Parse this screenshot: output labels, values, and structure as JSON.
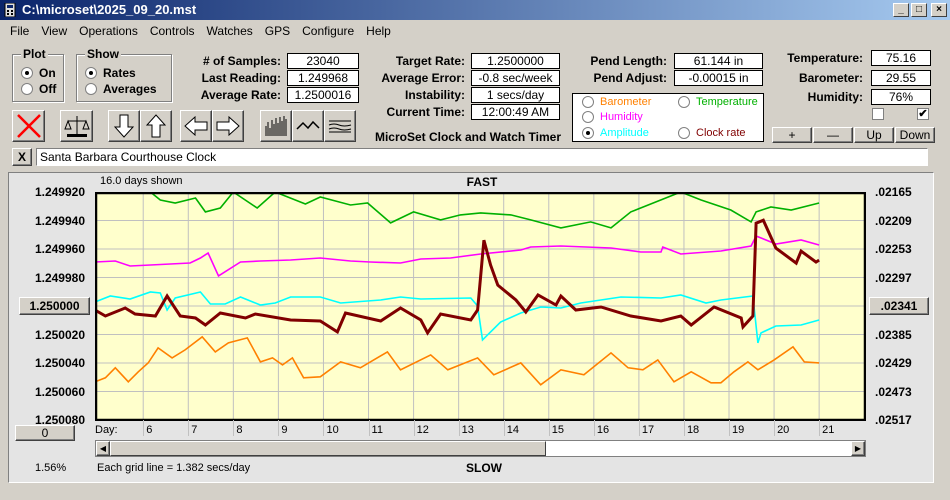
{
  "window": {
    "title": "C:\\microset\\2025_09_20.mst",
    "controls": [
      "_",
      "□",
      "×"
    ]
  },
  "menu": [
    "File",
    "View",
    "Operations",
    "Controls",
    "Watches",
    "GPS",
    "Configure",
    "Help"
  ],
  "plot_group": {
    "label": "Plot",
    "options": [
      {
        "label": "On",
        "selected": true
      },
      {
        "label": "Off",
        "selected": false
      }
    ]
  },
  "show_group": {
    "label": "Show",
    "options": [
      {
        "label": "Rates",
        "selected": true
      },
      {
        "label": "Averages",
        "selected": false
      }
    ]
  },
  "stats": [
    {
      "label": "# of Samples:",
      "value": "23040"
    },
    {
      "label": "Last Reading:",
      "value": "1.249968"
    },
    {
      "label": "Average Rate:",
      "value": "1.2500016"
    }
  ],
  "rates": [
    {
      "label": "Target Rate:",
      "value": "1.2500000"
    },
    {
      "label": "Average Error:",
      "value": "-0.8 sec/week"
    },
    {
      "label": "Instability:",
      "value": "1 secs/day"
    },
    {
      "label": "Current Time:",
      "value": "12:00:49 AM"
    }
  ],
  "app_name": "MicroSet Clock and Watch Timer",
  "pend": [
    {
      "label": "Pend Length:",
      "value": "61.144 in"
    },
    {
      "label": "Pend Adjust:",
      "value": "-0.00015 in"
    }
  ],
  "legend": [
    {
      "label": "Barometer",
      "color": "#ff8000",
      "selected": false
    },
    {
      "label": "Temperature",
      "color": "#00b000",
      "selected": false
    },
    {
      "label": "Humidity",
      "color": "#ff00ff",
      "selected": false
    },
    {
      "label": "Amplitude",
      "color": "#00ffff",
      "selected": true
    },
    {
      "label": "Clock rate",
      "color": "#800000",
      "selected": false
    }
  ],
  "env": [
    {
      "label": "Temperature:",
      "value": "75.16"
    },
    {
      "label": "Barometer:",
      "value": "29.55"
    },
    {
      "label": "Humidity:",
      "value": "76%"
    }
  ],
  "checkboxes": [
    {
      "checked": false
    },
    {
      "checked": true
    }
  ],
  "scale_buttons": [
    "+",
    "—",
    "Up",
    "Down"
  ],
  "toolbar_icons": [
    "delete-x-icon",
    "balance-scale-icon",
    "arrow-down-icon",
    "arrow-up-icon",
    "arrow-left-icon",
    "arrow-right-icon",
    "bar-graph-icon",
    "line-graph-icon",
    "smooth-lines-icon"
  ],
  "clock_name_clear": "X",
  "clock_name": "Santa Barbara Courthouse Clock",
  "chart_info": {
    "days_shown": "16.0 days shown",
    "top_label": "FAST",
    "bottom_label": "SLOW",
    "grid_note": "Each grid line = 1.382 secs/day",
    "percent": "1.56%",
    "offset_button": "0",
    "day_label": "Day:",
    "center_left": "1.250000",
    "center_right": ".02341"
  },
  "chart_data": {
    "type": "line",
    "xlabel": "Day",
    "xlim": [
      4.93,
      22.04
    ],
    "x_ticks": [
      6,
      7,
      8,
      9,
      10,
      11,
      12,
      13,
      14,
      15,
      16,
      17,
      18,
      19,
      20,
      21
    ],
    "y_units": "rate offset from 1.250000 in units of 1e-6",
    "ylim": [
      -80,
      80
    ],
    "left_ticks": [
      "1.249920",
      "1.249940",
      "1.249960",
      "1.249980",
      "1.250000",
      "1.250020",
      "1.250040",
      "1.250060",
      "1.250080"
    ],
    "right_ticks": [
      ".02165",
      ".02209",
      ".02253",
      ".02297",
      ".02341",
      ".02385",
      ".02429",
      ".02473",
      ".02517"
    ],
    "grid": true,
    "series": [
      {
        "name": "Temperature",
        "color": "#00b000",
        "points": [
          [
            4.93,
            -80
          ],
          [
            6.16,
            -80
          ],
          [
            6.38,
            -74.4
          ],
          [
            6.71,
            -72.3
          ],
          [
            7.16,
            -75.8
          ],
          [
            7.38,
            -66
          ],
          [
            7.71,
            -68.8
          ],
          [
            8,
            -80
          ],
          [
            8.53,
            -68.8
          ],
          [
            8.93,
            -80
          ],
          [
            9.6,
            -71.6
          ],
          [
            9.93,
            -76.5
          ],
          [
            10.6,
            -70.9
          ],
          [
            10.98,
            -72.3
          ],
          [
            11.49,
            -58.3
          ],
          [
            12,
            -66
          ],
          [
            12.6,
            -60.4
          ],
          [
            13.04,
            -63.9
          ],
          [
            13.49,
            -65.3
          ],
          [
            14.16,
            -63.9
          ],
          [
            14.6,
            -60.4
          ],
          [
            15.27,
            -54.8
          ],
          [
            15.93,
            -59
          ],
          [
            16.38,
            -54.8
          ],
          [
            16.82,
            -66
          ],
          [
            17.93,
            -80
          ],
          [
            18.38,
            -74.4
          ],
          [
            19.04,
            -67.4
          ],
          [
            19.49,
            -59
          ],
          [
            19.6,
            -66
          ],
          [
            19.93,
            -69.5
          ],
          [
            20.38,
            -67.4
          ],
          [
            21,
            -72.3
          ]
        ]
      },
      {
        "name": "Humidity",
        "color": "#ff00ff",
        "points": [
          [
            4.93,
            -30.9
          ],
          [
            5.38,
            -31.6
          ],
          [
            5.71,
            -28.1
          ],
          [
            6.16,
            -28.8
          ],
          [
            7.04,
            -30.2
          ],
          [
            7.27,
            -33.7
          ],
          [
            7.44,
            -37.2
          ],
          [
            7.67,
            -21.1
          ],
          [
            8.16,
            -30.9
          ],
          [
            8.6,
            -31.6
          ],
          [
            9.27,
            -32.3
          ],
          [
            9.93,
            -33.7
          ],
          [
            10.6,
            -31.6
          ],
          [
            11.04,
            -30.9
          ],
          [
            11.71,
            -30.2
          ],
          [
            12.16,
            -33
          ],
          [
            12.82,
            -33.7
          ],
          [
            13.49,
            -36.5
          ],
          [
            14.38,
            -39.3
          ],
          [
            14.6,
            -41.4
          ],
          [
            15.27,
            -42.1
          ],
          [
            16.38,
            -40.7
          ],
          [
            17.04,
            -37.9
          ],
          [
            17.49,
            -37.9
          ],
          [
            17.53,
            -41.4
          ],
          [
            17.93,
            -36.5
          ],
          [
            18.82,
            -38.6
          ],
          [
            19.49,
            -42.1
          ],
          [
            19.6,
            -49.1
          ],
          [
            20.04,
            -43.5
          ],
          [
            20.6,
            -46.3
          ],
          [
            21,
            -42.8
          ]
        ]
      },
      {
        "name": "Amplitude",
        "color": "#00ffff",
        "points": [
          [
            4.93,
            -2.8
          ],
          [
            5.27,
            -7
          ],
          [
            5.71,
            -4.9
          ],
          [
            6.16,
            -9.8
          ],
          [
            6.38,
            -9.1
          ],
          [
            6.53,
            2.8
          ],
          [
            6.71,
            -5.6
          ],
          [
            7.27,
            -9.8
          ],
          [
            7.49,
            -1.4
          ],
          [
            7.82,
            -1.4
          ],
          [
            8.16,
            -6.3
          ],
          [
            8.6,
            -0.7
          ],
          [
            8.93,
            -2.1
          ],
          [
            9.27,
            -6.3
          ],
          [
            9.93,
            -6.3
          ],
          [
            10.38,
            -2.1
          ],
          [
            11.27,
            -4.2
          ],
          [
            11.71,
            -6.3
          ],
          [
            12.16,
            -4.9
          ],
          [
            13.27,
            -5.6
          ],
          [
            13.42,
            0
          ],
          [
            13.53,
            23.8
          ],
          [
            13.93,
            11.2
          ],
          [
            14.38,
            4.9
          ],
          [
            14.82,
            0.7
          ],
          [
            15.27,
            1.4
          ],
          [
            15.71,
            -2.1
          ],
          [
            16.6,
            -6.3
          ],
          [
            17.49,
            -5.6
          ],
          [
            17.93,
            -7.7
          ],
          [
            18.49,
            -2.1
          ],
          [
            18.82,
            -4.2
          ],
          [
            19.53,
            -7
          ],
          [
            19.64,
            25.9
          ],
          [
            19.71,
            18.9
          ],
          [
            20.04,
            14
          ],
          [
            20.6,
            13.3
          ],
          [
            21,
            9.8
          ]
        ]
      },
      {
        "name": "Clock rate",
        "color": "#800000",
        "width": 3,
        "points": [
          [
            4.93,
            2.8
          ],
          [
            5.16,
            7
          ],
          [
            5.6,
            1.4
          ],
          [
            5.82,
            5.6
          ],
          [
            6.27,
            7
          ],
          [
            6.53,
            -7
          ],
          [
            6.82,
            7
          ],
          [
            7.16,
            8.4
          ],
          [
            7.38,
            13.3
          ],
          [
            7.71,
            4.9
          ],
          [
            8.27,
            8.4
          ],
          [
            8.49,
            5.6
          ],
          [
            9.27,
            9.8
          ],
          [
            9.93,
            10.5
          ],
          [
            10.31,
            18.2
          ],
          [
            10.49,
            4.9
          ],
          [
            11.27,
            10.5
          ],
          [
            11.71,
            1.4
          ],
          [
            12.16,
            9.8
          ],
          [
            12.31,
            18.9
          ],
          [
            12.6,
            5.6
          ],
          [
            13.27,
            9.8
          ],
          [
            13.42,
            2.8
          ],
          [
            13.56,
            -46.2
          ],
          [
            13.71,
            -28.7
          ],
          [
            13.87,
            -14.7
          ],
          [
            14.27,
            -4.2
          ],
          [
            14.49,
            4.2
          ],
          [
            14.76,
            -7.7
          ],
          [
            15.16,
            -0.7
          ],
          [
            15.27,
            -7
          ],
          [
            15.6,
            2.8
          ],
          [
            16.16,
            0.7
          ],
          [
            16.82,
            7
          ],
          [
            17.49,
            10.5
          ],
          [
            17.93,
            7
          ],
          [
            18.16,
            13.3
          ],
          [
            18.67,
            0.7
          ],
          [
            19.27,
            8.4
          ],
          [
            19.31,
            14.7
          ],
          [
            19.53,
            7
          ],
          [
            19.6,
            -58.1
          ],
          [
            19.76,
            -60.2
          ],
          [
            20.04,
            -40.6
          ],
          [
            20.49,
            -30.1
          ],
          [
            20.6,
            -38.5
          ],
          [
            20.93,
            -30.8
          ],
          [
            21,
            -32.2
          ]
        ]
      },
      {
        "name": "Barometer",
        "color": "#ff8000",
        "points": [
          [
            4.93,
            53.2
          ],
          [
            5.16,
            50.4
          ],
          [
            5.38,
            43.4
          ],
          [
            5.67,
            53.2
          ],
          [
            5.89,
            46.2
          ],
          [
            6.11,
            39.9
          ],
          [
            6.33,
            29.4
          ],
          [
            6.64,
            36.4
          ],
          [
            6.93,
            30.8
          ],
          [
            7.31,
            21.7
          ],
          [
            7.6,
            32.2
          ],
          [
            7.89,
            25.9
          ],
          [
            8.31,
            22.4
          ],
          [
            8.6,
            39.2
          ],
          [
            8.87,
            36.4
          ],
          [
            9.09,
            41.3
          ],
          [
            9.31,
            36.4
          ],
          [
            9.56,
            50.4
          ],
          [
            9.93,
            49.7
          ],
          [
            10.38,
            39.2
          ],
          [
            10.82,
            43.4
          ],
          [
            11.42,
            32.2
          ],
          [
            11.71,
            44.8
          ],
          [
            12.38,
            34.3
          ],
          [
            12.76,
            44.8
          ],
          [
            13.42,
            36.4
          ],
          [
            13.78,
            48.3
          ],
          [
            14.38,
            39.9
          ],
          [
            14.82,
            55.3
          ],
          [
            15.27,
            44.8
          ],
          [
            15.78,
            48.3
          ],
          [
            16.38,
            32.9
          ],
          [
            16.76,
            43.4
          ],
          [
            17.09,
            44.8
          ],
          [
            17.42,
            37.8
          ],
          [
            17.78,
            53.2
          ],
          [
            18.16,
            46.2
          ],
          [
            18.6,
            53.9
          ],
          [
            18.82,
            53.9
          ],
          [
            19.11,
            46.2
          ],
          [
            19.42,
            39.2
          ],
          [
            19.64,
            44.8
          ],
          [
            20,
            37.8
          ],
          [
            20.42,
            28.7
          ],
          [
            20.67,
            39.2
          ],
          [
            21,
            39.9
          ]
        ]
      }
    ]
  },
  "scrollbar": {
    "position_fraction": 0.57
  }
}
